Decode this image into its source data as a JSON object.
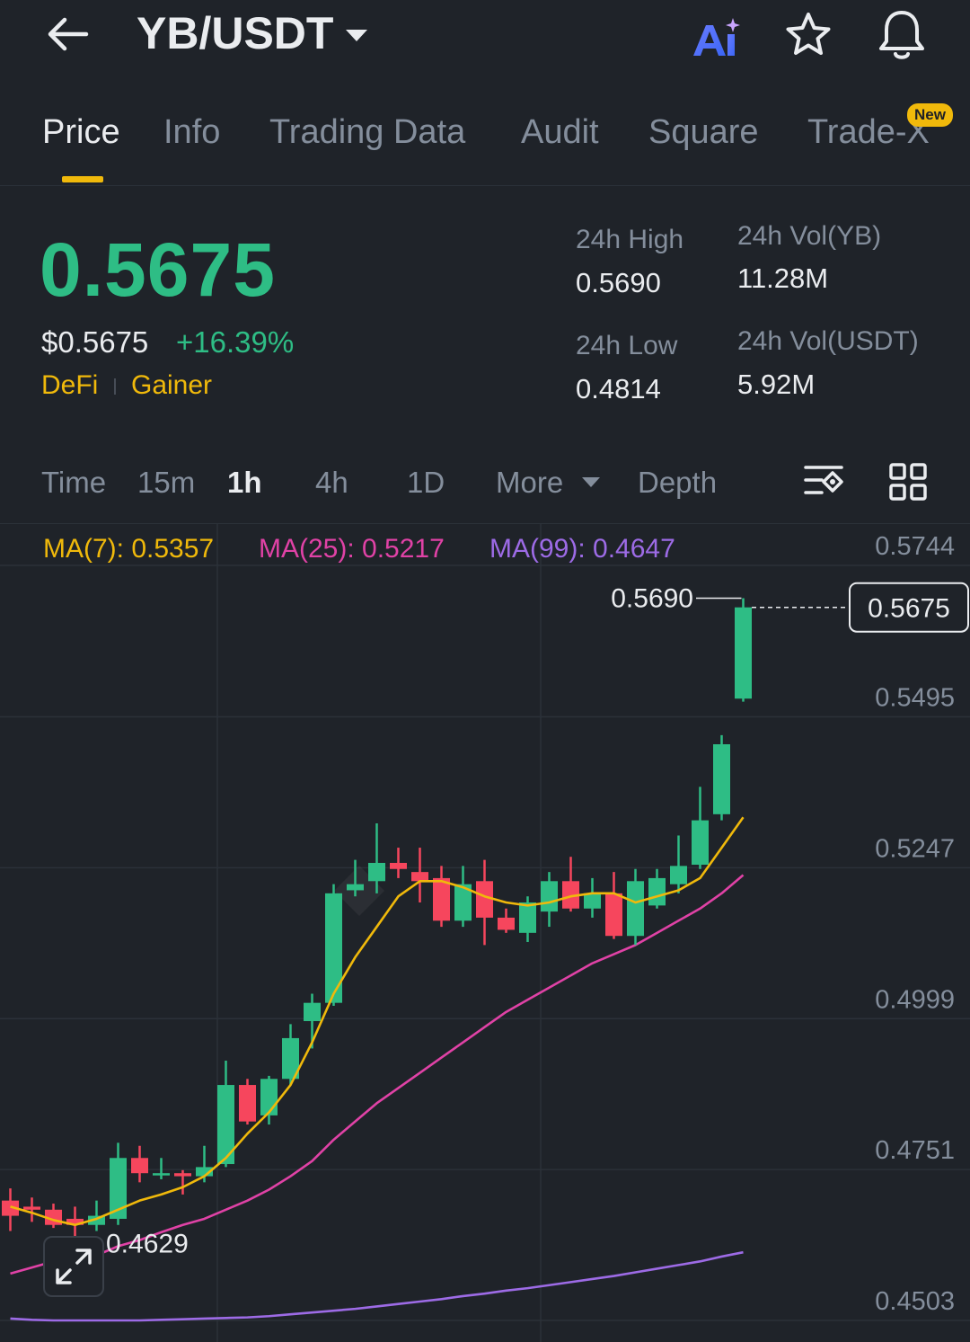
{
  "header": {
    "pair": "YB/USDT",
    "icons": [
      "back-arrow-icon",
      "ai-icon",
      "star-icon",
      "bell-icon"
    ]
  },
  "tabs": [
    {
      "label": "Price",
      "active": true
    },
    {
      "label": "Info"
    },
    {
      "label": "Trading Data"
    },
    {
      "label": "Audit"
    },
    {
      "label": "Square"
    },
    {
      "label": "Trade-X",
      "badge": "New"
    }
  ],
  "ticker": {
    "last_price": "0.5675",
    "usd_price": "$0.5675",
    "change": "+16.39%",
    "tags": [
      "DeFi",
      "Gainer"
    ],
    "high_label": "24h High",
    "high": "0.5690",
    "low_label": "24h Low",
    "low": "0.4814",
    "vol_base_label": "24h Vol(YB)",
    "vol_base": "11.28M",
    "vol_quote_label": "24h Vol(USDT)",
    "vol_quote": "5.92M"
  },
  "intervals": {
    "items": [
      "Time",
      "15m",
      "1h",
      "4h",
      "1D",
      "More",
      "Depth"
    ],
    "active": "1h"
  },
  "ma": {
    "ma7": "MA(7): 0.5357",
    "ma25": "MA(25): 0.5217",
    "ma99": "MA(99): 0.4647",
    "colors": {
      "ma7": "#f0b90b",
      "ma25": "#e042a6",
      "ma99": "#9d6be6"
    }
  },
  "colors": {
    "up": "#2ebd85",
    "down": "#f6465d",
    "bg": "#1f2329",
    "accent": "#f0b90b"
  },
  "chart_data": {
    "type": "candlestick",
    "y_axis_ticks": [
      "0.5744",
      "0.5495",
      "0.5247",
      "0.4999",
      "0.4751",
      "0.4503"
    ],
    "ylim": [
      0.4503,
      0.5744
    ],
    "current_price_label": "0.5675",
    "high_marker": "0.5690",
    "low_marker": "0.4629",
    "candles": [
      {
        "o": 0.47,
        "h": 0.472,
        "l": 0.465,
        "c": 0.4675
      },
      {
        "o": 0.469,
        "h": 0.4705,
        "l": 0.4665,
        "c": 0.4685
      },
      {
        "o": 0.4685,
        "h": 0.4695,
        "l": 0.4655,
        "c": 0.466
      },
      {
        "o": 0.467,
        "h": 0.469,
        "l": 0.4629,
        "c": 0.466
      },
      {
        "o": 0.466,
        "h": 0.47,
        "l": 0.465,
        "c": 0.4675
      },
      {
        "o": 0.467,
        "h": 0.4795,
        "l": 0.466,
        "c": 0.477
      },
      {
        "o": 0.477,
        "h": 0.479,
        "l": 0.473,
        "c": 0.4745
      },
      {
        "o": 0.4745,
        "h": 0.477,
        "l": 0.4735,
        "c": 0.4745
      },
      {
        "o": 0.4745,
        "h": 0.475,
        "l": 0.471,
        "c": 0.474
      },
      {
        "o": 0.474,
        "h": 0.479,
        "l": 0.473,
        "c": 0.4755
      },
      {
        "o": 0.476,
        "h": 0.493,
        "l": 0.4755,
        "c": 0.489
      },
      {
        "o": 0.489,
        "h": 0.49,
        "l": 0.4825,
        "c": 0.483
      },
      {
        "o": 0.484,
        "h": 0.4905,
        "l": 0.4825,
        "c": 0.49
      },
      {
        "o": 0.49,
        "h": 0.499,
        "l": 0.489,
        "c": 0.4967
      },
      {
        "o": 0.4995,
        "h": 0.504,
        "l": 0.495,
        "c": 0.5025
      },
      {
        "o": 0.5025,
        "h": 0.522,
        "l": 0.502,
        "c": 0.5205
      },
      {
        "o": 0.521,
        "h": 0.526,
        "l": 0.52,
        "c": 0.522
      },
      {
        "o": 0.5225,
        "h": 0.532,
        "l": 0.5205,
        "c": 0.5255
      },
      {
        "o": 0.5255,
        "h": 0.528,
        "l": 0.523,
        "c": 0.5245
      },
      {
        "o": 0.524,
        "h": 0.528,
        "l": 0.519,
        "c": 0.5225
      },
      {
        "o": 0.523,
        "h": 0.525,
        "l": 0.515,
        "c": 0.516
      },
      {
        "o": 0.516,
        "h": 0.525,
        "l": 0.515,
        "c": 0.522
      },
      {
        "o": 0.5225,
        "h": 0.526,
        "l": 0.512,
        "c": 0.5165
      },
      {
        "o": 0.5165,
        "h": 0.518,
        "l": 0.514,
        "c": 0.5145
      },
      {
        "o": 0.514,
        "h": 0.52,
        "l": 0.5125,
        "c": 0.519
      },
      {
        "o": 0.5175,
        "h": 0.524,
        "l": 0.515,
        "c": 0.5225
      },
      {
        "o": 0.5225,
        "h": 0.5265,
        "l": 0.5175,
        "c": 0.518
      },
      {
        "o": 0.518,
        "h": 0.523,
        "l": 0.5165,
        "c": 0.5205
      },
      {
        "o": 0.5205,
        "h": 0.524,
        "l": 0.513,
        "c": 0.5135
      },
      {
        "o": 0.5135,
        "h": 0.5245,
        "l": 0.512,
        "c": 0.5225
      },
      {
        "o": 0.5185,
        "h": 0.5245,
        "l": 0.518,
        "c": 0.523
      },
      {
        "o": 0.522,
        "h": 0.53,
        "l": 0.5205,
        "c": 0.525
      },
      {
        "o": 0.5252,
        "h": 0.538,
        "l": 0.5245,
        "c": 0.5325
      },
      {
        "o": 0.5335,
        "h": 0.5465,
        "l": 0.5325,
        "c": 0.545
      },
      {
        "o": 0.5525,
        "h": 0.569,
        "l": 0.552,
        "c": 0.5675
      }
    ],
    "ma7": [
      0.469,
      0.468,
      0.4668,
      0.466,
      0.467,
      0.4685,
      0.47,
      0.471,
      0.4722,
      0.474,
      0.477,
      0.481,
      0.4845,
      0.489,
      0.496,
      0.504,
      0.51,
      0.515,
      0.52,
      0.5225,
      0.5225,
      0.5215,
      0.52,
      0.519,
      0.5185,
      0.519,
      0.52,
      0.5205,
      0.5205,
      0.519,
      0.52,
      0.521,
      0.523,
      0.528,
      0.533
    ],
    "ma25": [
      0.458,
      0.459,
      0.46,
      0.4605,
      0.461,
      0.4625,
      0.4635,
      0.4648,
      0.466,
      0.467,
      0.4685,
      0.47,
      0.4718,
      0.474,
      0.4765,
      0.48,
      0.483,
      0.486,
      0.4885,
      0.491,
      0.4935,
      0.496,
      0.4985,
      0.501,
      0.503,
      0.505,
      0.507,
      0.509,
      0.5105,
      0.512,
      0.514,
      0.516,
      0.518,
      0.5205,
      0.5235
    ],
    "ma99": [
      0.4506,
      0.4504,
      0.4503,
      0.4503,
      0.4503,
      0.4503,
      0.4503,
      0.4504,
      0.4505,
      0.4506,
      0.4507,
      0.4508,
      0.451,
      0.4513,
      0.4516,
      0.4519,
      0.4522,
      0.4526,
      0.453,
      0.4534,
      0.4538,
      0.4543,
      0.4547,
      0.4552,
      0.4556,
      0.4561,
      0.4566,
      0.4571,
      0.4576,
      0.4582,
      0.4588,
      0.4594,
      0.46,
      0.4608,
      0.4615
    ]
  }
}
